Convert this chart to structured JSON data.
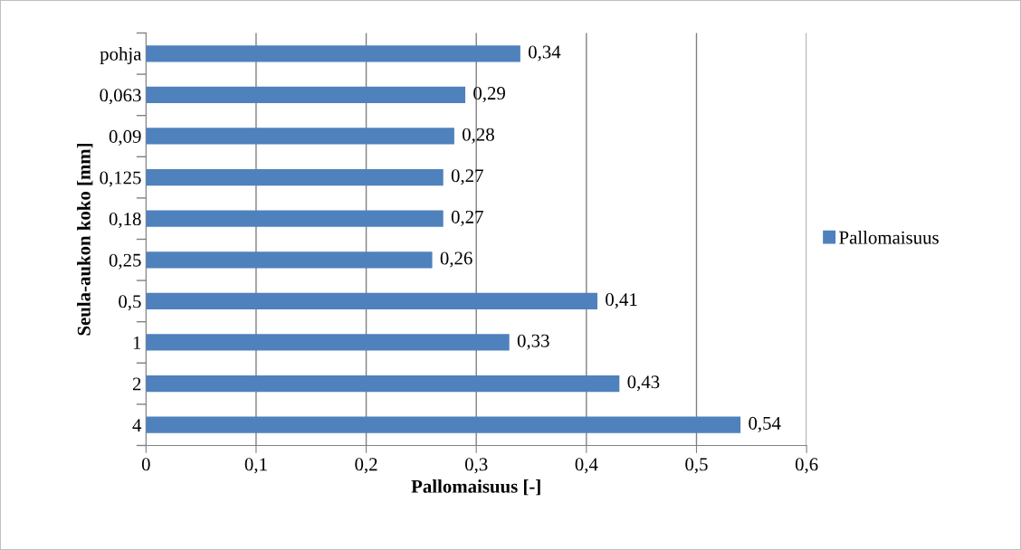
{
  "chart_data": {
    "type": "bar",
    "orientation": "horizontal",
    "xlabel": "Pallomaisuus [-]",
    "ylabel": "Seula-aukon koko [mm]",
    "categories": [
      "pohja",
      "0,063",
      "0,09",
      "0,125",
      "0,18",
      "0,25",
      "0,5",
      "1",
      "2",
      "4"
    ],
    "series": [
      {
        "name": "Pallomaisuus",
        "color": "#4f81bd",
        "values": [
          0.34,
          0.29,
          0.28,
          0.27,
          0.27,
          0.26,
          0.41,
          0.33,
          0.43,
          0.54
        ],
        "value_labels": [
          "0,34",
          "0,29",
          "0,28",
          "0,27",
          "0,27",
          "0,26",
          "0,41",
          "0,33",
          "0,43",
          "0,54"
        ]
      }
    ],
    "xlim": [
      0,
      0.6
    ],
    "xticks": [
      0,
      {
        "value": 0.1,
        "label": "0,1"
      },
      {
        "value": 0.2,
        "label": "0,2"
      },
      {
        "value": 0.3,
        "label": "0,3"
      },
      {
        "value": 0.4,
        "label": "0,4"
      },
      {
        "value": 0.5,
        "label": "0,5"
      },
      {
        "value": 0.6,
        "label": "0,6"
      }
    ],
    "grid": "x",
    "legend": "right"
  }
}
